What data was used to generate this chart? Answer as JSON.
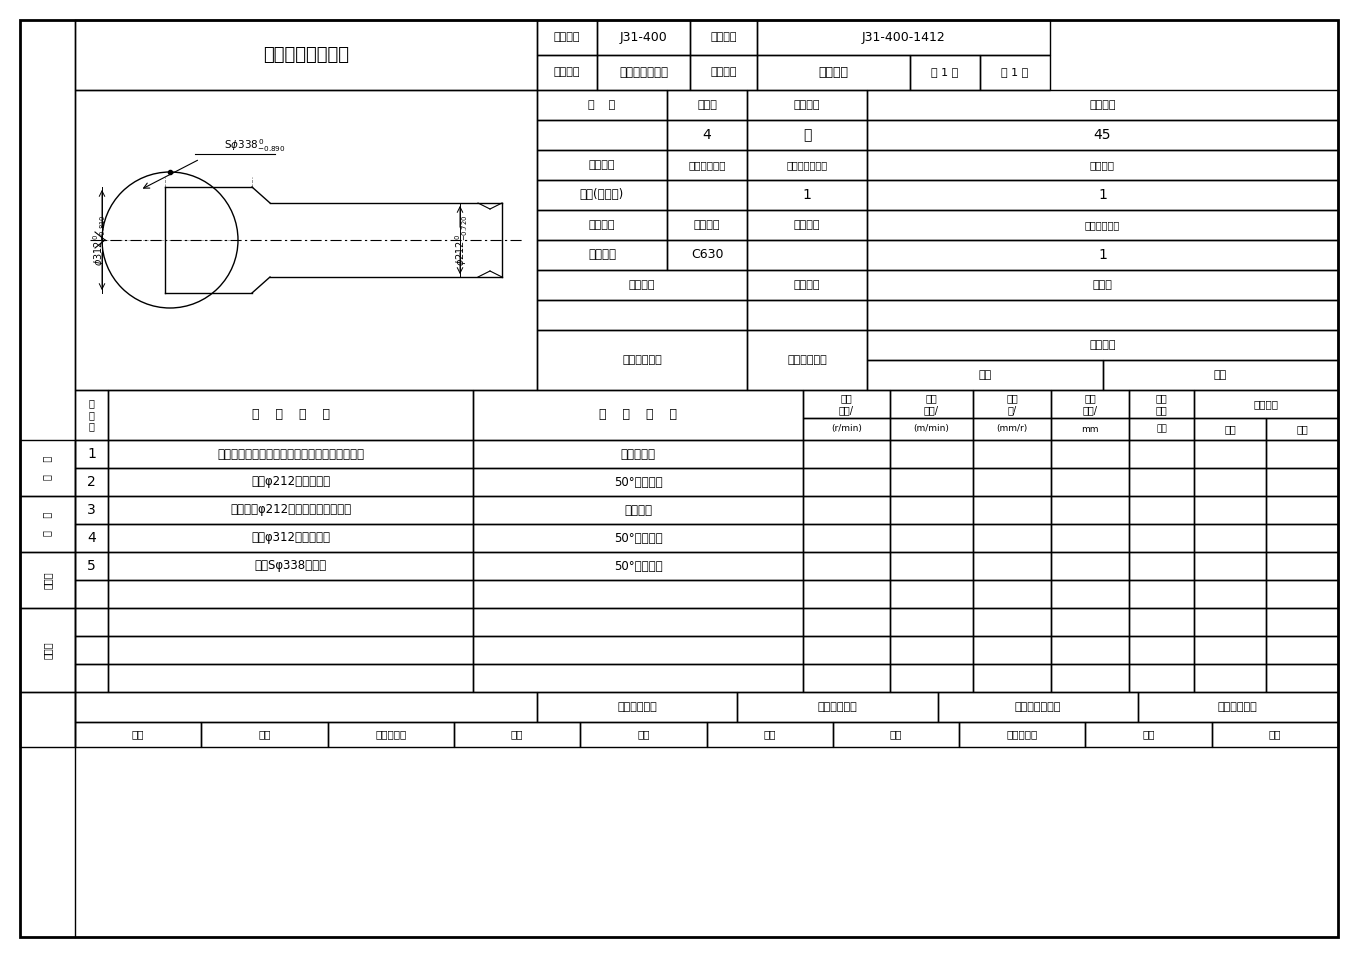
{
  "title": "机械加工工序卡片",
  "product_model": "J31-400",
  "product_name": "闭式单点压力机",
  "part_drawing_no": "J31-400-1412",
  "part_name": "球头螺杆",
  "total_pages": "1",
  "current_page": "1",
  "workshop": "",
  "process_no": "4",
  "process_name": "车",
  "material_grade": "45",
  "blank_type": "锻件(自由锻)",
  "blank_shape": "",
  "parts_per_blank": "1",
  "parts_per_set": "1",
  "equipment_name": "卧式车床",
  "equipment_model": "C630",
  "equipment_no": "",
  "simultaneous_parts": "1",
  "fixture_no": "",
  "fixture_name": "",
  "cutting_fluid": "切削液",
  "steps": [
    {
      "no": "1",
      "content": "床头固定顶尖、床尾固定顶尖定位，拨杆加紧。",
      "equipment": "顶尖、拨杆"
    },
    {
      "no": "2",
      "content": "粗车φ212外圆柱面。",
      "equipment": "50°外圆车刀"
    },
    {
      "no": "3",
      "content": "调头，按φ212外圆柱面找正夹紧。",
      "equipment": "三爪卡盘"
    },
    {
      "no": "4",
      "content": "粗车φ312外圆柱面。",
      "equipment": "50°外圆车刀"
    },
    {
      "no": "5",
      "content": "粗车Sφ338球面。",
      "equipment": "50°外圆车刀"
    }
  ],
  "bg_color": "#ffffff",
  "line_color": "#000000",
  "font_color": "#000000"
}
